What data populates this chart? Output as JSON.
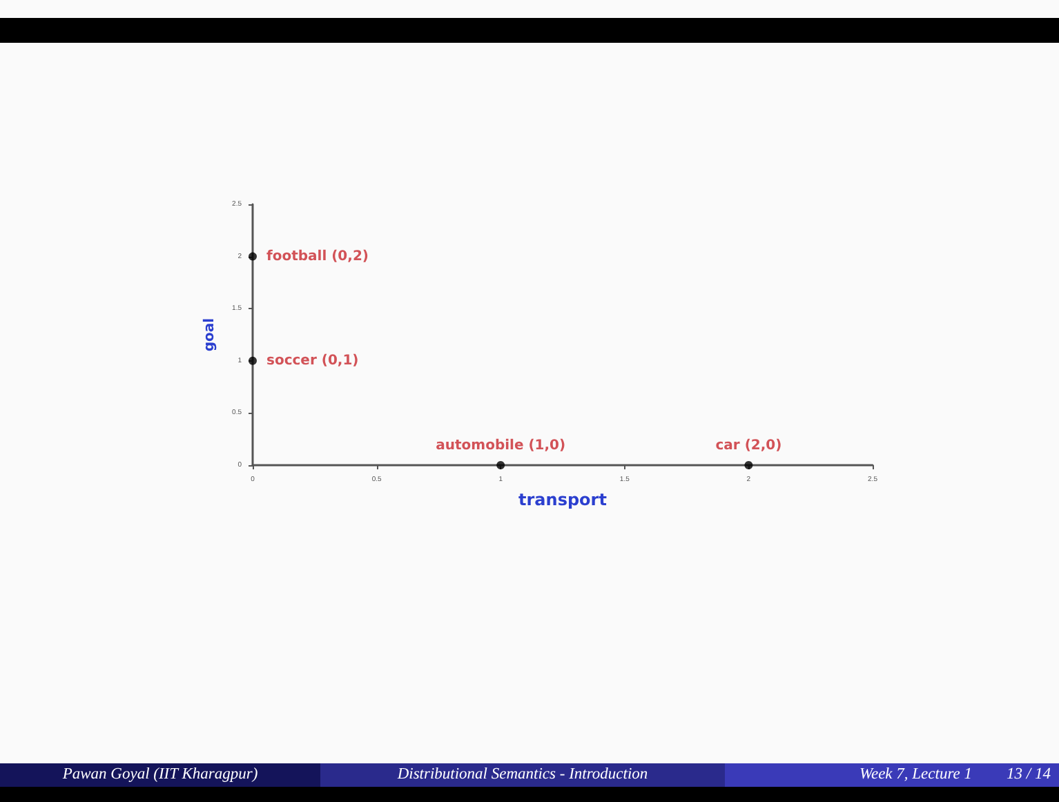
{
  "chart_data": {
    "type": "scatter",
    "xlabel": "transport",
    "ylabel": "goal",
    "x": [
      0,
      0,
      1,
      2
    ],
    "values": [
      2,
      1,
      0,
      0
    ],
    "color": "#000000",
    "marker": "circle",
    "grid": false,
    "xlim": [
      0,
      2.5
    ],
    "xticks": [
      0,
      0.5,
      1,
      1.5,
      2,
      2.5
    ],
    "ylim": [
      0,
      2.5
    ],
    "yticks": [
      0,
      0.5,
      1,
      1.5,
      2,
      2.5
    ],
    "annotations": [
      {
        "text": "football (0,2)",
        "x": 0,
        "y": 2
      },
      {
        "text": "soccer (0,1)",
        "x": 0,
        "y": 1
      },
      {
        "text": "automobile (1,0)",
        "x": 1,
        "y": 0
      },
      {
        "text": "car (2,0)",
        "x": 2,
        "y": 0
      },
      "Pawan Goyal  (IIT Kharagpur)",
      "Distributional Semantics - Introduction",
      "Week 7, Lecture 1",
      "13 / 14"
    ]
  }
}
